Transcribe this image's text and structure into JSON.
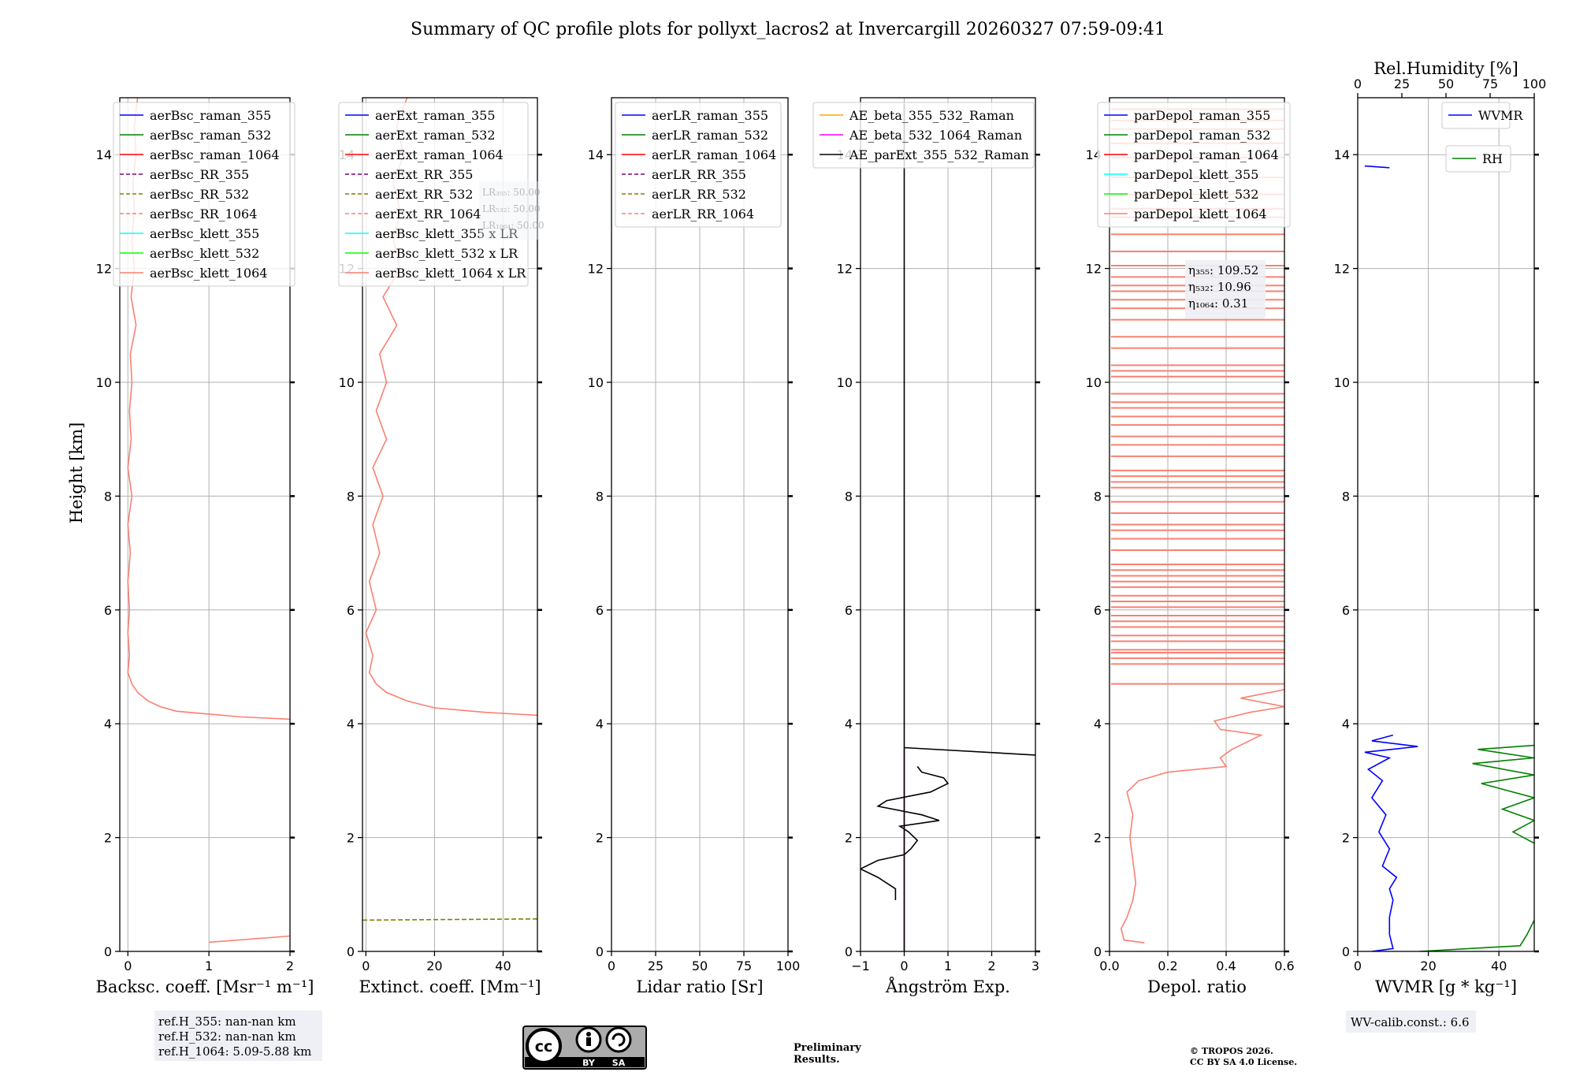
{
  "title": "Summary of QC profile plots for pollyxt_lacros2 at Invercargill 20260327 07:59-09:41",
  "ylabel": "Height [km]",
  "chart_data": [
    {
      "id": "bsc",
      "type": "line",
      "xlabel": "Backsc. coeff. [Msr⁻¹ m⁻¹]",
      "xlim": [
        -0.1,
        2
      ],
      "xticks": [
        0,
        1,
        2
      ],
      "ylim": [
        0,
        15
      ],
      "yticks": [
        0,
        2,
        4,
        6,
        8,
        10,
        12,
        14
      ],
      "legend": [
        {
          "name": "aerBsc_raman_355",
          "color": "#0000ff",
          "dash": false
        },
        {
          "name": "aerBsc_raman_532",
          "color": "#008000",
          "dash": false
        },
        {
          "name": "aerBsc_raman_1064",
          "color": "#ff0000",
          "dash": false
        },
        {
          "name": "aerBsc_RR_355",
          "color": "#800080",
          "dash": true
        },
        {
          "name": "aerBsc_RR_532",
          "color": "#808000",
          "dash": true
        },
        {
          "name": "aerBsc_RR_1064",
          "color": "#fa8072",
          "dash": true
        },
        {
          "name": "aerBsc_klett_355",
          "color": "#00ffff",
          "dash": false
        },
        {
          "name": "aerBsc_klett_532",
          "color": "#00ff00",
          "dash": false
        },
        {
          "name": "aerBsc_klett_1064",
          "color": "#fa8072",
          "dash": false
        }
      ],
      "series": [
        {
          "name": "aerBsc_klett_1064",
          "color": "#fa8072",
          "points": [
            [
              1,
              0.16
            ],
            [
              2,
              0.27
            ],
            [
              null,
              null
            ],
            [
              2,
              4.08
            ],
            [
              1.4,
              4.12
            ],
            [
              1,
              4.17
            ],
            [
              0.6,
              4.22
            ],
            [
              0.4,
              4.3
            ],
            [
              0.25,
              4.4
            ],
            [
              0.12,
              4.55
            ],
            [
              0.05,
              4.7
            ],
            [
              0,
              4.9
            ],
            [
              0.02,
              5.2
            ],
            [
              0,
              5.6
            ],
            [
              0.02,
              6
            ],
            [
              0,
              6.5
            ],
            [
              0.03,
              7
            ],
            [
              0,
              7.5
            ],
            [
              0.05,
              8
            ],
            [
              0,
              8.5
            ],
            [
              0.04,
              9
            ],
            [
              0.02,
              9.5
            ],
            [
              0.05,
              10
            ],
            [
              0.03,
              10.5
            ],
            [
              0.1,
              11
            ],
            [
              0.04,
              11.5
            ],
            [
              0.08,
              12
            ],
            [
              0.05,
              12.5
            ],
            [
              0.08,
              13
            ],
            [
              0.06,
              13.5
            ],
            [
              0.1,
              14
            ],
            [
              0.08,
              14.5
            ],
            [
              0.12,
              15
            ]
          ]
        }
      ],
      "box": null
    },
    {
      "id": "ext",
      "type": "line",
      "xlabel": "Extinct. coeff. [Mm⁻¹]",
      "xlim": [
        -1,
        50
      ],
      "xticks": [
        0,
        20,
        40
      ],
      "ylim": [
        0,
        15
      ],
      "yticks": [
        0,
        2,
        4,
        6,
        8,
        10,
        12,
        14
      ],
      "legend": [
        {
          "name": "aerExt_raman_355",
          "color": "#0000ff",
          "dash": false
        },
        {
          "name": "aerExt_raman_532",
          "color": "#008000",
          "dash": false
        },
        {
          "name": "aerExt_raman_1064",
          "color": "#ff0000",
          "dash": false
        },
        {
          "name": "aerExt_RR_355",
          "color": "#800080",
          "dash": true
        },
        {
          "name": "aerExt_RR_532",
          "color": "#808000",
          "dash": true
        },
        {
          "name": "aerExt_RR_1064",
          "color": "#fa8072",
          "dash": true
        },
        {
          "name": "aerBsc_klett_355 x LR",
          "color": "#00ffff",
          "dash": false
        },
        {
          "name": "aerBsc_klett_532 x LR",
          "color": "#00ff00",
          "dash": false
        },
        {
          "name": "aerBsc_klett_1064 x LR",
          "color": "#fa8072",
          "dash": false
        }
      ],
      "series": [
        {
          "name": "aerExt_RR_532",
          "color": "#808000",
          "dash": true,
          "points": [
            [
              -1,
              0.55
            ],
            [
              50,
              0.57
            ]
          ]
        },
        {
          "name": "aerBsc_klett_1064 x LR",
          "color": "#fa8072",
          "points": [
            [
              50,
              4.15
            ],
            [
              35,
              4.2
            ],
            [
              20,
              4.28
            ],
            [
              12,
              4.4
            ],
            [
              6,
              4.55
            ],
            [
              3,
              4.7
            ],
            [
              1,
              4.9
            ],
            [
              2,
              5.2
            ],
            [
              0,
              5.6
            ],
            [
              3,
              6
            ],
            [
              1,
              6.5
            ],
            [
              4,
              7
            ],
            [
              2,
              7.5
            ],
            [
              5,
              8
            ],
            [
              2,
              8.5
            ],
            [
              6,
              9
            ],
            [
              3,
              9.5
            ],
            [
              6,
              10
            ],
            [
              4,
              10.5
            ],
            [
              9,
              11
            ],
            [
              5,
              11.5
            ],
            [
              10,
              12
            ],
            [
              8,
              12.5
            ],
            [
              10,
              13
            ],
            [
              8,
              13.5
            ],
            [
              11,
              14
            ],
            [
              9,
              14.5
            ],
            [
              12,
              15
            ]
          ]
        }
      ],
      "box": {
        "lines": [
          "LR₃₅₅: 50.00",
          "LR₅₃₂: 50.00",
          "LR₁₀₆₄: 50.00"
        ]
      }
    },
    {
      "id": "lr",
      "type": "line",
      "xlabel": "Lidar ratio [Sr]",
      "xlim": [
        0,
        100
      ],
      "xticks": [
        0,
        25,
        50,
        75,
        100
      ],
      "ylim": [
        0,
        15
      ],
      "yticks": [
        0,
        2,
        4,
        6,
        8,
        10,
        12,
        14
      ],
      "legend": [
        {
          "name": "aerLR_raman_355",
          "color": "#0000ff",
          "dash": false
        },
        {
          "name": "aerLR_raman_532",
          "color": "#008000",
          "dash": false
        },
        {
          "name": "aerLR_raman_1064",
          "color": "#ff0000",
          "dash": false
        },
        {
          "name": "aerLR_RR_355",
          "color": "#800080",
          "dash": true
        },
        {
          "name": "aerLR_RR_532",
          "color": "#808000",
          "dash": true
        },
        {
          "name": "aerLR_RR_1064",
          "color": "#fa8072",
          "dash": true
        }
      ],
      "series": [],
      "box": null
    },
    {
      "id": "ae",
      "type": "line",
      "xlabel": "Ångström Exp.",
      "xlim": [
        -1,
        3
      ],
      "xticks": [
        -1,
        0,
        1,
        2,
        3
      ],
      "ylim": [
        0,
        15
      ],
      "yticks": [
        0,
        2,
        4,
        6,
        8,
        10,
        12,
        14
      ],
      "legend": [
        {
          "name": "AE_beta_355_532_Raman",
          "color": "#ffa500",
          "dash": false
        },
        {
          "name": "AE_beta_532_1064_Raman",
          "color": "#ff00ff",
          "dash": false
        },
        {
          "name": "AE_parExt_355_532_Raman",
          "color": "#000000",
          "dash": false
        }
      ],
      "series": [
        {
          "name": "AE_beta_532_1064_Raman",
          "color": "#ff00ff",
          "points": [
            [
              0,
              0
            ],
            [
              0,
              3.55
            ]
          ]
        },
        {
          "name": "AE_parExt_355_532_Raman",
          "color": "#000000",
          "points": [
            [
              0,
              0
            ],
            [
              0,
              14.9
            ],
            [
              null,
              null
            ],
            [
              3,
              3.45
            ],
            [
              0,
              3.58
            ],
            [
              null,
              null
            ],
            [
              -0.2,
              0.9
            ],
            [
              -0.2,
              1.1
            ],
            [
              -0.6,
              1.3
            ],
            [
              -1,
              1.45
            ],
            [
              -0.6,
              1.6
            ],
            [
              0,
              1.7
            ],
            [
              0.15,
              1.8
            ],
            [
              0.3,
              1.95
            ],
            [
              0.1,
              2.1
            ],
            [
              -0.1,
              2.2
            ],
            [
              0.8,
              2.3
            ],
            [
              0.4,
              2.4
            ],
            [
              -0.6,
              2.55
            ],
            [
              -0.4,
              2.65
            ],
            [
              0.6,
              2.8
            ],
            [
              1,
              2.95
            ],
            [
              0.9,
              3.05
            ],
            [
              0.4,
              3.15
            ],
            [
              0.3,
              3.25
            ]
          ]
        }
      ],
      "box": null
    },
    {
      "id": "depol",
      "type": "line",
      "xlabel": "Depol. ratio",
      "xlim": [
        0,
        0.6
      ],
      "xticks": [
        0.0,
        0.2,
        0.4,
        0.6
      ],
      "ylim": [
        0,
        15
      ],
      "yticks": [
        0,
        2,
        4,
        6,
        8,
        10,
        12,
        14
      ],
      "legend": [
        {
          "name": "parDepol_raman_355",
          "color": "#0000ff",
          "dash": false
        },
        {
          "name": "parDepol_raman_532",
          "color": "#008000",
          "dash": false
        },
        {
          "name": "parDepol_raman_1064",
          "color": "#ff0000",
          "dash": false
        },
        {
          "name": "parDepol_klett_355",
          "color": "#00ffff",
          "dash": false
        },
        {
          "name": "parDepol_klett_532",
          "color": "#00ff00",
          "dash": false
        },
        {
          "name": "parDepol_klett_1064",
          "color": "#fa8072",
          "dash": false
        }
      ],
      "series": [
        {
          "name": "parDepol_klett_1064",
          "color": "#fa8072",
          "points": [
            [
              0.12,
              0.15
            ],
            [
              0.05,
              0.2
            ],
            [
              0.04,
              0.4
            ],
            [
              0.06,
              0.6
            ],
            [
              0.08,
              0.9
            ],
            [
              0.09,
              1.2
            ],
            [
              0.08,
              1.6
            ],
            [
              0.07,
              2
            ],
            [
              0.08,
              2.4
            ],
            [
              0.06,
              2.8
            ],
            [
              0.1,
              3
            ],
            [
              0.2,
              3.15
            ],
            [
              0.4,
              3.25
            ],
            [
              0.38,
              3.4
            ],
            [
              0.42,
              3.55
            ],
            [
              0.52,
              3.8
            ],
            [
              0.38,
              3.9
            ],
            [
              0.36,
              4.05
            ],
            [
              0.48,
              4.2
            ],
            [
              0.6,
              4.3
            ],
            [
              0.45,
              4.45
            ],
            [
              0.6,
              4.6
            ]
          ]
        }
      ],
      "hlines": [
        4.7,
        5.05,
        5.15,
        5.25,
        5.3,
        5.45,
        5.55,
        5.7,
        5.8,
        5.9,
        6.05,
        6.15,
        6.25,
        6.4,
        6.5,
        6.6,
        6.7,
        6.8,
        7.05,
        7.25,
        7.4,
        7.5,
        7.7,
        7.9,
        8.15,
        8.25,
        8.35,
        8.45,
        8.7,
        8.9,
        9.05,
        9.25,
        9.4,
        9.55,
        9.65,
        9.8,
        10.1,
        10.2,
        10.3,
        10.6,
        10.8,
        11.1,
        11.3,
        11.45,
        11.6,
        11.7,
        11.85,
        12.05,
        12.3,
        12.6,
        12.9,
        13.05,
        13.3,
        13.6,
        13.95,
        14.2,
        14.45,
        14.6,
        14.8
      ],
      "box": {
        "lines": [
          "η₃₅₅: 109.52",
          "η₅₃₂: 10.96",
          "η₁₀₆₄: 0.31"
        ]
      }
    },
    {
      "id": "wv",
      "type": "line",
      "xlabel": "WVMR [g * kg⁻¹]",
      "xlim": [
        0,
        50
      ],
      "xticks": [
        0,
        20,
        40
      ],
      "x2label": "Rel.Humidity [%]",
      "x2lim": [
        0,
        100
      ],
      "x2ticks": [
        0,
        25,
        50,
        75,
        100
      ],
      "ylim": [
        0,
        15
      ],
      "yticks": [
        0,
        2,
        4,
        6,
        8,
        10,
        12,
        14
      ],
      "legend": [
        {
          "name": "WVMR",
          "color": "#0000ff",
          "dash": false
        }
      ],
      "legend2": [
        {
          "name": "RH",
          "color": "#008000",
          "dash": false
        }
      ],
      "series": [
        {
          "name": "WVMR",
          "color": "#0000ff",
          "points": [
            [
              4,
              0
            ],
            [
              10,
              0.05
            ],
            [
              9,
              0.3
            ],
            [
              9,
              0.6
            ],
            [
              10,
              0.9
            ],
            [
              9,
              1.1
            ],
            [
              11,
              1.3
            ],
            [
              7,
              1.5
            ],
            [
              9,
              1.8
            ],
            [
              6,
              2.1
            ],
            [
              8,
              2.4
            ],
            [
              4,
              2.7
            ],
            [
              7,
              3
            ],
            [
              3,
              3.2
            ],
            [
              9,
              3.4
            ],
            [
              2,
              3.5
            ],
            [
              17,
              3.6
            ],
            [
              4,
              3.7
            ],
            [
              10,
              3.8
            ]
          ]
        },
        {
          "name": "WVMR_top",
          "color": "#0000ff",
          "points": [
            [
              2,
              13.8
            ],
            [
              9,
              13.77
            ]
          ]
        },
        {
          "name": "RH",
          "color": "#008000",
          "axis": 2,
          "points": [
            [
              35,
              0
            ],
            [
              92,
              0.1
            ],
            [
              96,
              0.3
            ],
            [
              100,
              0.55
            ],
            [
              null,
              null
            ],
            [
              100,
              1.9
            ],
            [
              88,
              2.1
            ],
            [
              100,
              2.3
            ],
            [
              82,
              2.5
            ],
            [
              100,
              2.7
            ],
            [
              70,
              2.95
            ],
            [
              100,
              3.1
            ],
            [
              65,
              3.3
            ],
            [
              100,
              3.4
            ],
            [
              68,
              3.55
            ],
            [
              100,
              3.62
            ]
          ]
        }
      ],
      "box": null
    }
  ],
  "footer": {
    "refh": [
      "ref.H_355: nan-nan km",
      "ref.H_532: nan-nan km",
      "ref.H_1064: 5.09-5.88 km"
    ],
    "cc_label_by": "BY",
    "cc_label_sa": "SA",
    "cc_icon": "cc-by-sa-icon",
    "preliminary": "Preliminary\nResults.",
    "copyright": [
      "© TROPOS 2026.",
      "CC BY SA 4.0 License."
    ],
    "wv_calib": "WV-calib.const.: 6.6",
    "preliminary_color": "#e8202a"
  }
}
